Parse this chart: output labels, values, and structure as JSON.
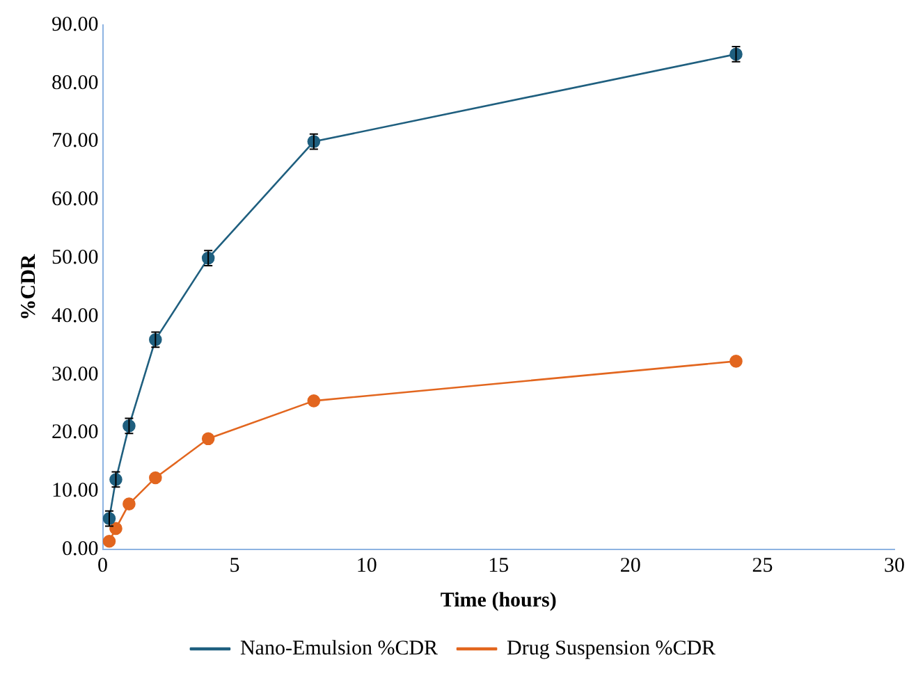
{
  "chart_data": {
    "type": "line",
    "xlabel": "Time (hours)",
    "ylabel": "%CDR",
    "x": [
      0.25,
      0.5,
      1,
      2,
      4,
      8,
      24
    ],
    "series": [
      {
        "name": "Nano-Emulsion %CDR",
        "color": "#1f5f7f",
        "values": [
          5.3,
          12,
          21.2,
          36,
          50,
          70,
          85
        ],
        "errors": [
          1.3,
          1.3,
          1.3,
          1.3,
          1.3,
          1.3,
          1.3
        ]
      },
      {
        "name": "Drug Suspension %CDR",
        "color": "#e2661f",
        "values": [
          1.4,
          3.6,
          7.8,
          12.3,
          19,
          25.5,
          32.3
        ]
      }
    ],
    "xlim": [
      0,
      30
    ],
    "xticks": [
      0,
      5,
      10,
      15,
      20,
      25,
      30
    ],
    "ylim": [
      0,
      90
    ],
    "yticks": [
      {
        "value": 0,
        "label": "0.00"
      },
      {
        "value": 10,
        "label": "10.00"
      },
      {
        "value": 20,
        "label": "20.00"
      },
      {
        "value": 30,
        "label": "30.00"
      },
      {
        "value": 40,
        "label": "40.00"
      },
      {
        "value": 50,
        "label": "50.00"
      },
      {
        "value": 60,
        "label": "60.00"
      },
      {
        "value": 70,
        "label": "70.00"
      },
      {
        "value": 80,
        "label": "80.00"
      },
      {
        "value": 90,
        "label": "90.00"
      }
    ],
    "grid": false,
    "legend": "bottom",
    "marker": "circle",
    "line_style": "solid"
  }
}
